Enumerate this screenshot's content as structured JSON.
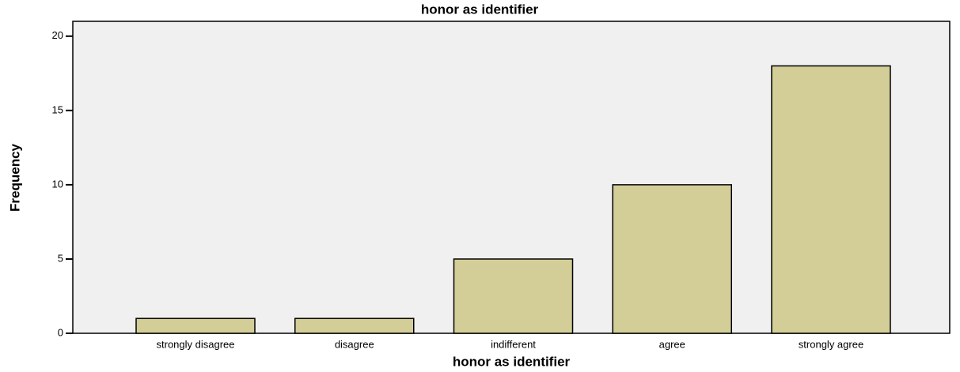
{
  "chart_data": {
    "type": "bar",
    "title": "honor as identifier",
    "x_label": "honor as identifier",
    "y_label": "Frequency",
    "categories": [
      "strongly disagree",
      "disagree",
      "indifferent",
      "agree",
      "strongly agree"
    ],
    "values": [
      1,
      1,
      5,
      10,
      18
    ],
    "color": "#d3ce97",
    "ylim": [
      0,
      21
    ],
    "yticks": [
      0,
      5,
      10,
      15,
      20
    ],
    "grid": false
  }
}
